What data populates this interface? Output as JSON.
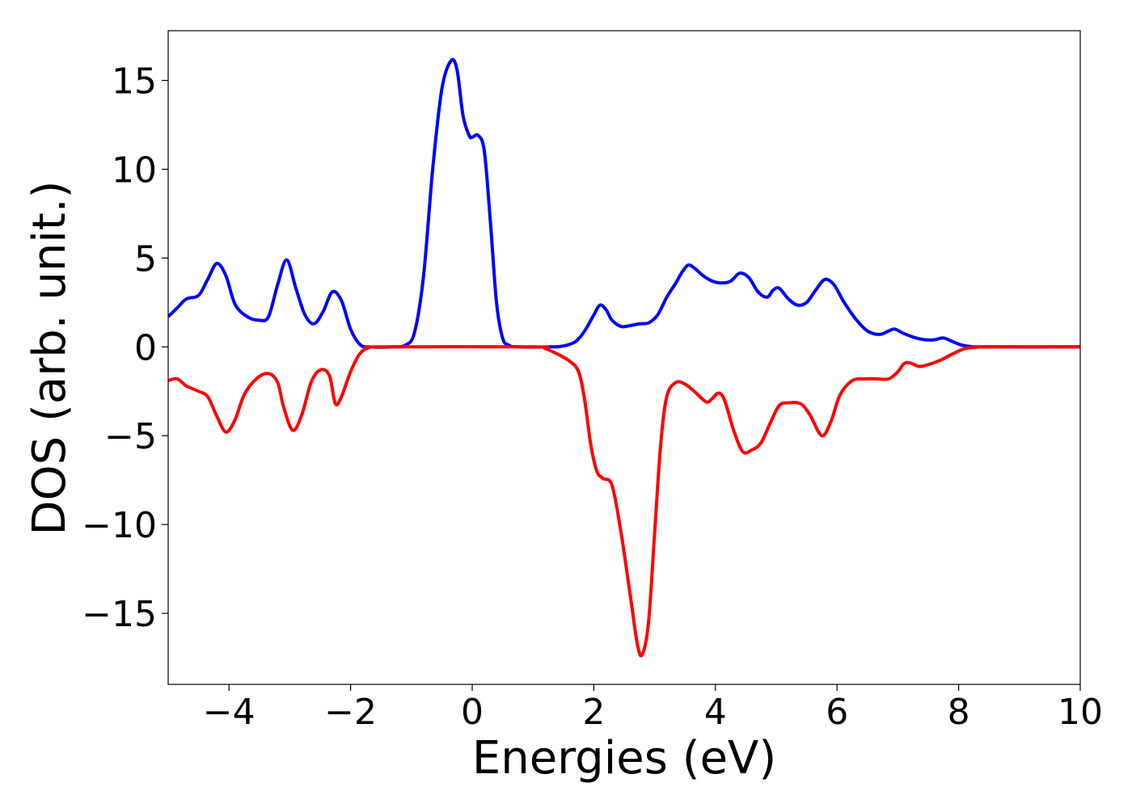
{
  "chart_data": {
    "type": "line",
    "title": "",
    "xlabel": "Energies (eV)",
    "ylabel": "DOS (arb. unit.)",
    "xlim": [
      -5,
      10
    ],
    "ylim": [
      -19,
      17.8
    ],
    "grid": false,
    "legend": "none",
    "x_ticks": [
      -4,
      -2,
      0,
      2,
      4,
      6,
      8,
      10
    ],
    "x_tick_labels": [
      "−4",
      "−2",
      "0",
      "2",
      "4",
      "6",
      "8",
      "10"
    ],
    "y_ticks": [
      -15,
      -10,
      -5,
      0,
      5,
      10,
      15
    ],
    "y_tick_labels": [
      "−15",
      "−10",
      "−5",
      "0",
      "5",
      "10",
      "15"
    ],
    "series": [
      {
        "color": "#0000ff",
        "points": [
          [
            -5.0,
            1.7
          ],
          [
            -4.85,
            2.2
          ],
          [
            -4.7,
            2.7
          ],
          [
            -4.5,
            2.9
          ],
          [
            -4.35,
            3.8
          ],
          [
            -4.2,
            4.7
          ],
          [
            -4.05,
            4.0
          ],
          [
            -3.9,
            2.4
          ],
          [
            -3.7,
            1.7
          ],
          [
            -3.5,
            1.5
          ],
          [
            -3.35,
            1.7
          ],
          [
            -3.2,
            3.5
          ],
          [
            -3.05,
            4.9
          ],
          [
            -2.9,
            3.3
          ],
          [
            -2.75,
            1.8
          ],
          [
            -2.6,
            1.3
          ],
          [
            -2.45,
            2.0
          ],
          [
            -2.3,
            3.1
          ],
          [
            -2.15,
            2.6
          ],
          [
            -2.0,
            1.0
          ],
          [
            -1.85,
            0.15
          ],
          [
            -1.7,
            0.0
          ],
          [
            -1.3,
            0.0
          ],
          [
            -1.1,
            0.1
          ],
          [
            -0.95,
            0.8
          ],
          [
            -0.8,
            4.0
          ],
          [
            -0.65,
            10.0
          ],
          [
            -0.5,
            14.5
          ],
          [
            -0.35,
            16.1
          ],
          [
            -0.25,
            15.6
          ],
          [
            -0.15,
            13.0
          ],
          [
            -0.05,
            11.9
          ],
          [
            0.0,
            11.8
          ],
          [
            0.1,
            11.9
          ],
          [
            0.2,
            11.0
          ],
          [
            0.3,
            7.0
          ],
          [
            0.4,
            2.5
          ],
          [
            0.5,
            0.5
          ],
          [
            0.6,
            0.1
          ],
          [
            0.75,
            0.0
          ],
          [
            1.3,
            0.0
          ],
          [
            1.5,
            0.05
          ],
          [
            1.7,
            0.3
          ],
          [
            1.85,
            0.9
          ],
          [
            2.0,
            1.8
          ],
          [
            2.1,
            2.35
          ],
          [
            2.2,
            2.1
          ],
          [
            2.3,
            1.5
          ],
          [
            2.45,
            1.15
          ],
          [
            2.6,
            1.2
          ],
          [
            2.75,
            1.3
          ],
          [
            2.9,
            1.35
          ],
          [
            3.05,
            1.8
          ],
          [
            3.2,
            2.8
          ],
          [
            3.35,
            3.6
          ],
          [
            3.45,
            4.2
          ],
          [
            3.55,
            4.6
          ],
          [
            3.65,
            4.45
          ],
          [
            3.8,
            4.0
          ],
          [
            3.95,
            3.7
          ],
          [
            4.1,
            3.6
          ],
          [
            4.25,
            3.7
          ],
          [
            4.4,
            4.15
          ],
          [
            4.55,
            3.9
          ],
          [
            4.7,
            3.1
          ],
          [
            4.85,
            2.8
          ],
          [
            4.95,
            3.2
          ],
          [
            5.05,
            3.3
          ],
          [
            5.2,
            2.7
          ],
          [
            5.35,
            2.35
          ],
          [
            5.5,
            2.5
          ],
          [
            5.65,
            3.2
          ],
          [
            5.8,
            3.8
          ],
          [
            5.95,
            3.5
          ],
          [
            6.1,
            2.6
          ],
          [
            6.3,
            1.6
          ],
          [
            6.5,
            0.9
          ],
          [
            6.7,
            0.7
          ],
          [
            6.85,
            0.9
          ],
          [
            6.95,
            1.0
          ],
          [
            7.1,
            0.75
          ],
          [
            7.3,
            0.5
          ],
          [
            7.45,
            0.4
          ],
          [
            7.6,
            0.4
          ],
          [
            7.75,
            0.5
          ],
          [
            7.9,
            0.3
          ],
          [
            8.05,
            0.1
          ],
          [
            8.2,
            0.02
          ],
          [
            8.4,
            0.0
          ],
          [
            10.0,
            0.0
          ]
        ]
      },
      {
        "color": "#ff0000",
        "points": [
          [
            -5.0,
            -1.9
          ],
          [
            -4.85,
            -1.8
          ],
          [
            -4.7,
            -2.2
          ],
          [
            -4.5,
            -2.5
          ],
          [
            -4.35,
            -2.8
          ],
          [
            -4.2,
            -3.9
          ],
          [
            -4.05,
            -4.8
          ],
          [
            -3.9,
            -4.1
          ],
          [
            -3.75,
            -2.7
          ],
          [
            -3.55,
            -1.8
          ],
          [
            -3.35,
            -1.5
          ],
          [
            -3.2,
            -2.0
          ],
          [
            -3.1,
            -3.4
          ],
          [
            -2.95,
            -4.7
          ],
          [
            -2.8,
            -3.8
          ],
          [
            -2.65,
            -2.0
          ],
          [
            -2.5,
            -1.3
          ],
          [
            -2.35,
            -1.6
          ],
          [
            -2.25,
            -3.2
          ],
          [
            -2.15,
            -2.8
          ],
          [
            -2.0,
            -1.4
          ],
          [
            -1.85,
            -0.4
          ],
          [
            -1.7,
            -0.05
          ],
          [
            -1.5,
            0.0
          ],
          [
            1.0,
            0.0
          ],
          [
            1.2,
            -0.1
          ],
          [
            1.4,
            -0.4
          ],
          [
            1.6,
            -0.8
          ],
          [
            1.75,
            -1.4
          ],
          [
            1.85,
            -3.0
          ],
          [
            1.95,
            -5.5
          ],
          [
            2.05,
            -7.0
          ],
          [
            2.15,
            -7.4
          ],
          [
            2.3,
            -7.8
          ],
          [
            2.45,
            -10.5
          ],
          [
            2.6,
            -14.0
          ],
          [
            2.72,
            -16.8
          ],
          [
            2.8,
            -17.3
          ],
          [
            2.9,
            -15.5
          ],
          [
            3.0,
            -10.5
          ],
          [
            3.1,
            -5.5
          ],
          [
            3.2,
            -2.8
          ],
          [
            3.35,
            -2.0
          ],
          [
            3.5,
            -2.1
          ],
          [
            3.65,
            -2.5
          ],
          [
            3.85,
            -3.1
          ],
          [
            3.95,
            -2.9
          ],
          [
            4.05,
            -2.6
          ],
          [
            4.15,
            -3.0
          ],
          [
            4.3,
            -4.7
          ],
          [
            4.45,
            -5.9
          ],
          [
            4.6,
            -5.8
          ],
          [
            4.75,
            -5.4
          ],
          [
            4.9,
            -4.3
          ],
          [
            5.05,
            -3.3
          ],
          [
            5.2,
            -3.15
          ],
          [
            5.4,
            -3.2
          ],
          [
            5.55,
            -3.8
          ],
          [
            5.75,
            -5.0
          ],
          [
            5.9,
            -4.2
          ],
          [
            6.05,
            -2.7
          ],
          [
            6.25,
            -1.9
          ],
          [
            6.45,
            -1.8
          ],
          [
            6.65,
            -1.8
          ],
          [
            6.85,
            -1.8
          ],
          [
            7.0,
            -1.4
          ],
          [
            7.1,
            -0.95
          ],
          [
            7.2,
            -0.9
          ],
          [
            7.35,
            -1.1
          ],
          [
            7.5,
            -1.0
          ],
          [
            7.7,
            -0.75
          ],
          [
            7.9,
            -0.4
          ],
          [
            8.1,
            -0.1
          ],
          [
            8.3,
            -0.02
          ],
          [
            8.5,
            0.0
          ],
          [
            10.0,
            0.0
          ]
        ]
      }
    ]
  }
}
